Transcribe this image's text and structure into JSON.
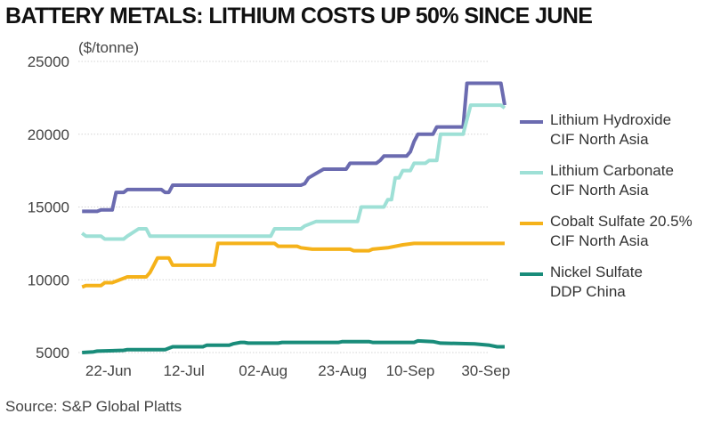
{
  "title": "BATTERY METALS: LITHIUM COSTS UP 50% SINCE JUNE",
  "unit_label": "($/tonne)",
  "source": "Source: S&P Global Platts",
  "chart_data": {
    "type": "line",
    "title": "BATTERY METALS: LITHIUM COSTS UP 50% SINCE JUNE",
    "ylabel": "($/tonne)",
    "xlabel": "",
    "ylim": [
      5000,
      25000
    ],
    "yticks": [
      5000,
      10000,
      15000,
      20000,
      25000
    ],
    "ytick_labels": [
      "5000",
      "10000",
      "15000",
      "20000",
      "25000"
    ],
    "xlim": [
      "2021-06-14",
      "2021-10-01"
    ],
    "xticks": [
      "2021-06-22",
      "2021-07-12",
      "2021-08-02",
      "2021-08-23",
      "2021-09-10",
      "2021-09-30"
    ],
    "xtick_labels": [
      "22-Jun",
      "12-Jul",
      "02-Aug",
      "23-Aug",
      "10-Sep",
      "30-Sep"
    ],
    "grid": "horizontal",
    "legend_position": "right",
    "series": [
      {
        "name": [
          "Lithium Hydroxide",
          "CIF North Asia"
        ],
        "color": "#6b6bb0",
        "points": [
          [
            "2021-06-15",
            14700
          ],
          [
            "2021-06-19",
            14700
          ],
          [
            "2021-06-20",
            14800
          ],
          [
            "2021-06-23",
            14800
          ],
          [
            "2021-06-24",
            16000
          ],
          [
            "2021-06-26",
            16000
          ],
          [
            "2021-06-27",
            16200
          ],
          [
            "2021-07-06",
            16200
          ],
          [
            "2021-07-07",
            16000
          ],
          [
            "2021-07-08",
            16000
          ],
          [
            "2021-07-09",
            16500
          ],
          [
            "2021-08-12",
            16500
          ],
          [
            "2021-08-13",
            16600
          ],
          [
            "2021-08-14",
            17000
          ],
          [
            "2021-08-16",
            17300
          ],
          [
            "2021-08-18",
            17600
          ],
          [
            "2021-08-24",
            17600
          ],
          [
            "2021-08-25",
            18000
          ],
          [
            "2021-09-01",
            18000
          ],
          [
            "2021-09-02",
            18200
          ],
          [
            "2021-09-03",
            18500
          ],
          [
            "2021-09-09",
            18500
          ],
          [
            "2021-09-10",
            18800
          ],
          [
            "2021-09-11",
            19500
          ],
          [
            "2021-09-12",
            20000
          ],
          [
            "2021-09-16",
            20000
          ],
          [
            "2021-09-17",
            20500
          ],
          [
            "2021-09-24",
            20500
          ],
          [
            "2021-09-25",
            23500
          ],
          [
            "2021-10-04",
            23500
          ],
          [
            "2021-10-05",
            22000
          ]
        ]
      },
      {
        "name": [
          "Lithium Carbonate",
          "CIF North Asia"
        ],
        "color": "#9ee0d6",
        "points": [
          [
            "2021-06-15",
            13200
          ],
          [
            "2021-06-16",
            13000
          ],
          [
            "2021-06-20",
            13000
          ],
          [
            "2021-06-21",
            12800
          ],
          [
            "2021-06-26",
            12800
          ],
          [
            "2021-06-27",
            13000
          ],
          [
            "2021-06-30",
            13500
          ],
          [
            "2021-07-02",
            13500
          ],
          [
            "2021-07-03",
            13000
          ],
          [
            "2021-08-04",
            13000
          ],
          [
            "2021-08-05",
            13500
          ],
          [
            "2021-08-12",
            13500
          ],
          [
            "2021-08-13",
            13700
          ],
          [
            "2021-08-16",
            14000
          ],
          [
            "2021-08-27",
            14000
          ],
          [
            "2021-08-28",
            15000
          ],
          [
            "2021-09-03",
            15000
          ],
          [
            "2021-09-04",
            15500
          ],
          [
            "2021-09-05",
            15500
          ],
          [
            "2021-09-06",
            17000
          ],
          [
            "2021-09-07",
            17000
          ],
          [
            "2021-09-08",
            17500
          ],
          [
            "2021-09-10",
            17500
          ],
          [
            "2021-09-11",
            18000
          ],
          [
            "2021-09-14",
            18000
          ],
          [
            "2021-09-15",
            18200
          ],
          [
            "2021-09-17",
            18200
          ],
          [
            "2021-09-18",
            20000
          ],
          [
            "2021-09-24",
            20000
          ],
          [
            "2021-09-26",
            22000
          ],
          [
            "2021-10-04",
            22000
          ],
          [
            "2021-10-05",
            21800
          ]
        ]
      },
      {
        "name": [
          "Cobalt Sulfate 20.5%",
          "CIF North Asia"
        ],
        "color": "#f5b21a",
        "points": [
          [
            "2021-06-15",
            9500
          ],
          [
            "2021-06-16",
            9600
          ],
          [
            "2021-06-20",
            9600
          ],
          [
            "2021-06-21",
            9800
          ],
          [
            "2021-06-23",
            9800
          ],
          [
            "2021-06-24",
            9900
          ],
          [
            "2021-06-25",
            10000
          ],
          [
            "2021-06-27",
            10200
          ],
          [
            "2021-07-02",
            10200
          ],
          [
            "2021-07-03",
            10500
          ],
          [
            "2021-07-04",
            11000
          ],
          [
            "2021-07-05",
            11500
          ],
          [
            "2021-07-08",
            11500
          ],
          [
            "2021-07-09",
            11000
          ],
          [
            "2021-07-20",
            11000
          ],
          [
            "2021-07-21",
            12500
          ],
          [
            "2021-08-05",
            12500
          ],
          [
            "2021-08-06",
            12300
          ],
          [
            "2021-08-11",
            12300
          ],
          [
            "2021-08-12",
            12200
          ],
          [
            "2021-08-15",
            12100
          ],
          [
            "2021-08-25",
            12100
          ],
          [
            "2021-08-26",
            12000
          ],
          [
            "2021-08-30",
            12000
          ],
          [
            "2021-08-31",
            12100
          ],
          [
            "2021-09-04",
            12200
          ],
          [
            "2021-09-08",
            12400
          ],
          [
            "2021-09-11",
            12500
          ],
          [
            "2021-10-05",
            12500
          ]
        ]
      },
      {
        "name": [
          "Nickel Sulfate",
          "DDP China"
        ],
        "color": "#198c7a",
        "points": [
          [
            "2021-06-15",
            5000
          ],
          [
            "2021-06-18",
            5050
          ],
          [
            "2021-06-19",
            5100
          ],
          [
            "2021-06-26",
            5150
          ],
          [
            "2021-06-27",
            5200
          ],
          [
            "2021-07-07",
            5200
          ],
          [
            "2021-07-08",
            5300
          ],
          [
            "2021-07-09",
            5400
          ],
          [
            "2021-07-17",
            5400
          ],
          [
            "2021-07-18",
            5500
          ],
          [
            "2021-07-24",
            5500
          ],
          [
            "2021-07-25",
            5600
          ],
          [
            "2021-07-27",
            5700
          ],
          [
            "2021-07-28",
            5700
          ],
          [
            "2021-07-29",
            5650
          ],
          [
            "2021-08-06",
            5650
          ],
          [
            "2021-08-07",
            5700
          ],
          [
            "2021-08-22",
            5700
          ],
          [
            "2021-08-23",
            5750
          ],
          [
            "2021-08-30",
            5750
          ],
          [
            "2021-08-31",
            5700
          ],
          [
            "2021-09-11",
            5700
          ],
          [
            "2021-09-12",
            5800
          ],
          [
            "2021-09-16",
            5750
          ],
          [
            "2021-09-18",
            5650
          ],
          [
            "2021-09-27",
            5600
          ],
          [
            "2021-10-01",
            5500
          ],
          [
            "2021-10-03",
            5400
          ],
          [
            "2021-10-05",
            5400
          ]
        ]
      }
    ]
  }
}
